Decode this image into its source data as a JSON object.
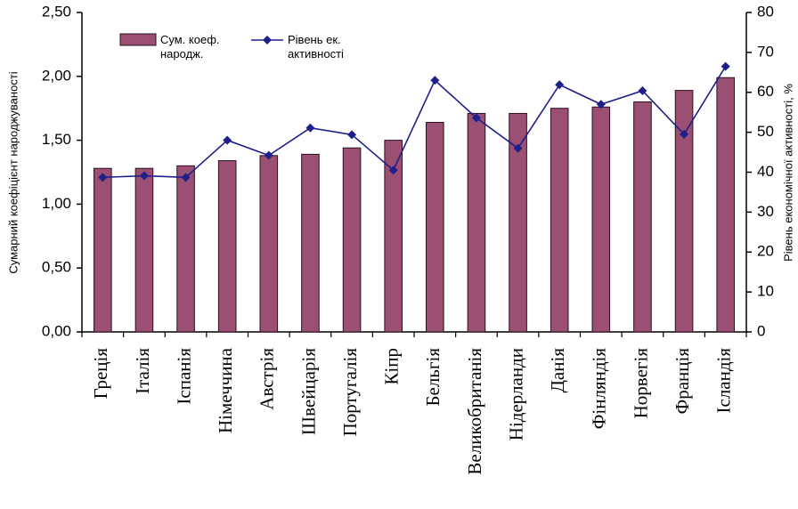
{
  "chart_data": {
    "type": "bar-line",
    "y_label": "Сумарний коефіцієнт народжуваності",
    "y2_label": "Рівень економічної активності, %",
    "categories": [
      "Греція",
      "Італія",
      "Іспанія",
      "Німеччина",
      "Австрія",
      "Швейцарія",
      "Португалія",
      "Кіпр",
      "Бельгія",
      "Великобританія",
      "Нідерланди",
      "Данія",
      "Фінляндія",
      "Норвегія",
      "Франція",
      "Ісландія"
    ],
    "series": [
      {
        "name": "Сум. коеф. народж.",
        "type": "bar",
        "color": "#9b4f72",
        "values": [
          1.28,
          1.28,
          1.3,
          1.34,
          1.38,
          1.39,
          1.44,
          1.5,
          1.64,
          1.71,
          1.71,
          1.75,
          1.76,
          1.8,
          1.89,
          1.99
        ]
      },
      {
        "name": "Рівень ек. активності",
        "type": "line",
        "axis": "y2",
        "color": "#1f1f8a",
        "values": [
          38.7,
          39.1,
          38.7,
          48,
          44.2,
          51.1,
          49.4,
          40.5,
          63,
          53.6,
          46,
          61.9,
          57,
          60.4,
          49.5,
          66.5
        ]
      }
    ],
    "ylim": [
      0,
      2.5
    ],
    "yticks": [
      {
        "value": 0,
        "label": "0,00"
      },
      {
        "value": 0.5,
        "label": "0,50"
      },
      {
        "value": 1,
        "label": "1,00"
      },
      {
        "value": 1.5,
        "label": "1,50"
      },
      {
        "value": 2,
        "label": "2,00"
      },
      {
        "value": 2.5,
        "label": "2,50"
      }
    ],
    "y2lim": [
      0,
      80
    ],
    "y2ticks": [
      0,
      10,
      20,
      30,
      40,
      50,
      60,
      70,
      80
    ],
    "grid": false,
    "legend": "top-left"
  }
}
